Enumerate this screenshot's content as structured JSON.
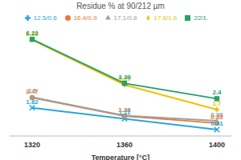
{
  "chart_data": {
    "type": "line",
    "title": "Residue % at 90/212 µm",
    "x_label": "Temperature [°C]",
    "categories": [
      "1320",
      "1360",
      "1400"
    ],
    "series": [
      {
        "name": "12.5/0.6",
        "color": "#2aa6dc",
        "marker": "x",
        "values": [
          1.82,
          1.11,
          0.41
        ]
      },
      {
        "name": "16.4/0.9",
        "color": "#e8792f",
        "marker": "circle",
        "values": [
          2.47,
          1.28,
          0.83
        ]
      },
      {
        "name": "17.1/0.8",
        "color": "#a0a0a0",
        "marker": "triangle",
        "values": [
          2.5,
          1.31,
          0.98
        ]
      },
      {
        "name": "17.6/1.6",
        "color": "#f2c200",
        "marker": "diamond",
        "values": [
          6.19,
          3.29,
          1.7
        ]
      },
      {
        "name": "22/1.",
        "color": "#27a06b",
        "marker": "square",
        "values": [
          6.22,
          3.39,
          2.4
        ]
      }
    ],
    "ylim": [
      0,
      7
    ],
    "tick_labels": "x",
    "grid": false,
    "legend": "top",
    "data_labels": true
  }
}
